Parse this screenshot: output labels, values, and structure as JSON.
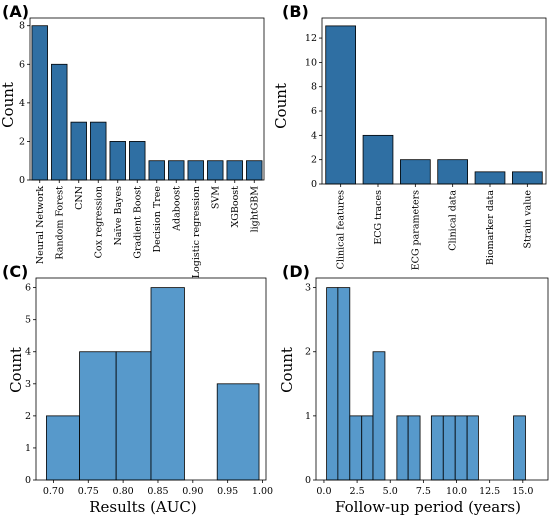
{
  "colors": {
    "bar_dark": "#2f6fa3",
    "bar_light": "#5799cb",
    "edge": "#000000"
  },
  "chart_data": [
    {
      "type": "bar",
      "panel": "(A)",
      "ylabel": "Count",
      "xlabel": "",
      "categories": [
        "Neural Network",
        "Random Forest",
        "CNN",
        "Cox regression",
        "Naïve Bayes",
        "Gradient Boost",
        "Decision Tree",
        "Adaboost",
        "Logistic regression",
        "SVM",
        "XGBoost",
        "lightGBM"
      ],
      "values": [
        8,
        6,
        3,
        3,
        2,
        2,
        1,
        1,
        1,
        1,
        1,
        1
      ],
      "ylim": [
        0,
        8.4
      ],
      "yticks": [
        0,
        2,
        4,
        6,
        8
      ],
      "grid": false
    },
    {
      "type": "bar",
      "panel": "(B)",
      "ylabel": "Count",
      "xlabel": "",
      "categories": [
        "Clinical features",
        "ECG traces",
        "ECG parameters",
        "Clinical data",
        "Biomarker data",
        "Strain value"
      ],
      "values": [
        13,
        4,
        2,
        2,
        1,
        1
      ],
      "ylim": [
        0,
        13.65
      ],
      "yticks": [
        0,
        2,
        4,
        6,
        8,
        10,
        12
      ],
      "grid": false
    },
    {
      "type": "histogram",
      "panel": "(C)",
      "ylabel": "Count",
      "xlabel": "Results (AUC)",
      "bins": [
        [
          0.69,
          0.7375
        ],
        [
          0.7375,
          0.79
        ],
        [
          0.79,
          0.84
        ],
        [
          0.84,
          0.888
        ],
        [
          0.888,
          0.935
        ],
        [
          0.935,
          0.995
        ]
      ],
      "values": [
        2,
        4,
        4,
        6,
        0,
        3
      ],
      "xlim": [
        0.675,
        1.005
      ],
      "xticks": [
        "0.70",
        "0.75",
        "0.80",
        "0.85",
        "0.90",
        "0.95",
        "1.00"
      ],
      "ylim": [
        0,
        6.3
      ],
      "yticks": [
        0,
        1,
        2,
        3,
        4,
        5,
        6
      ],
      "grid": false
    },
    {
      "type": "histogram",
      "panel": "(D)",
      "ylabel": "Count",
      "xlabel": "Follow-up period (years)",
      "bins": [
        [
          0.2,
          1.05
        ],
        [
          1.05,
          1.95
        ],
        [
          1.95,
          2.85
        ],
        [
          2.85,
          3.7
        ],
        [
          3.7,
          4.6
        ],
        [
          4.6,
          5.5
        ],
        [
          5.5,
          6.35
        ],
        [
          6.35,
          7.25
        ],
        [
          7.25,
          8.1
        ],
        [
          8.1,
          9.0
        ],
        [
          9.0,
          9.9
        ],
        [
          9.9,
          10.8
        ],
        [
          10.8,
          11.65
        ],
        [
          11.65,
          12.55
        ],
        [
          12.55,
          13.45
        ],
        [
          13.45,
          14.3
        ],
        [
          14.3,
          15.2
        ],
        [
          15.2,
          16.05
        ]
      ],
      "values": [
        3,
        3,
        1,
        1,
        2,
        0,
        1,
        1,
        0,
        1,
        1,
        1,
        1,
        0,
        0,
        0,
        1,
        0
      ],
      "xlim": [
        -0.6,
        16.9
      ],
      "xticks": [
        "0.0",
        "2.5",
        "5.0",
        "7.5",
        "10.0",
        "12.5",
        "15.0"
      ],
      "ylim": [
        0,
        3.15
      ],
      "yticks": [
        0,
        1,
        2,
        3
      ],
      "grid": false
    }
  ]
}
